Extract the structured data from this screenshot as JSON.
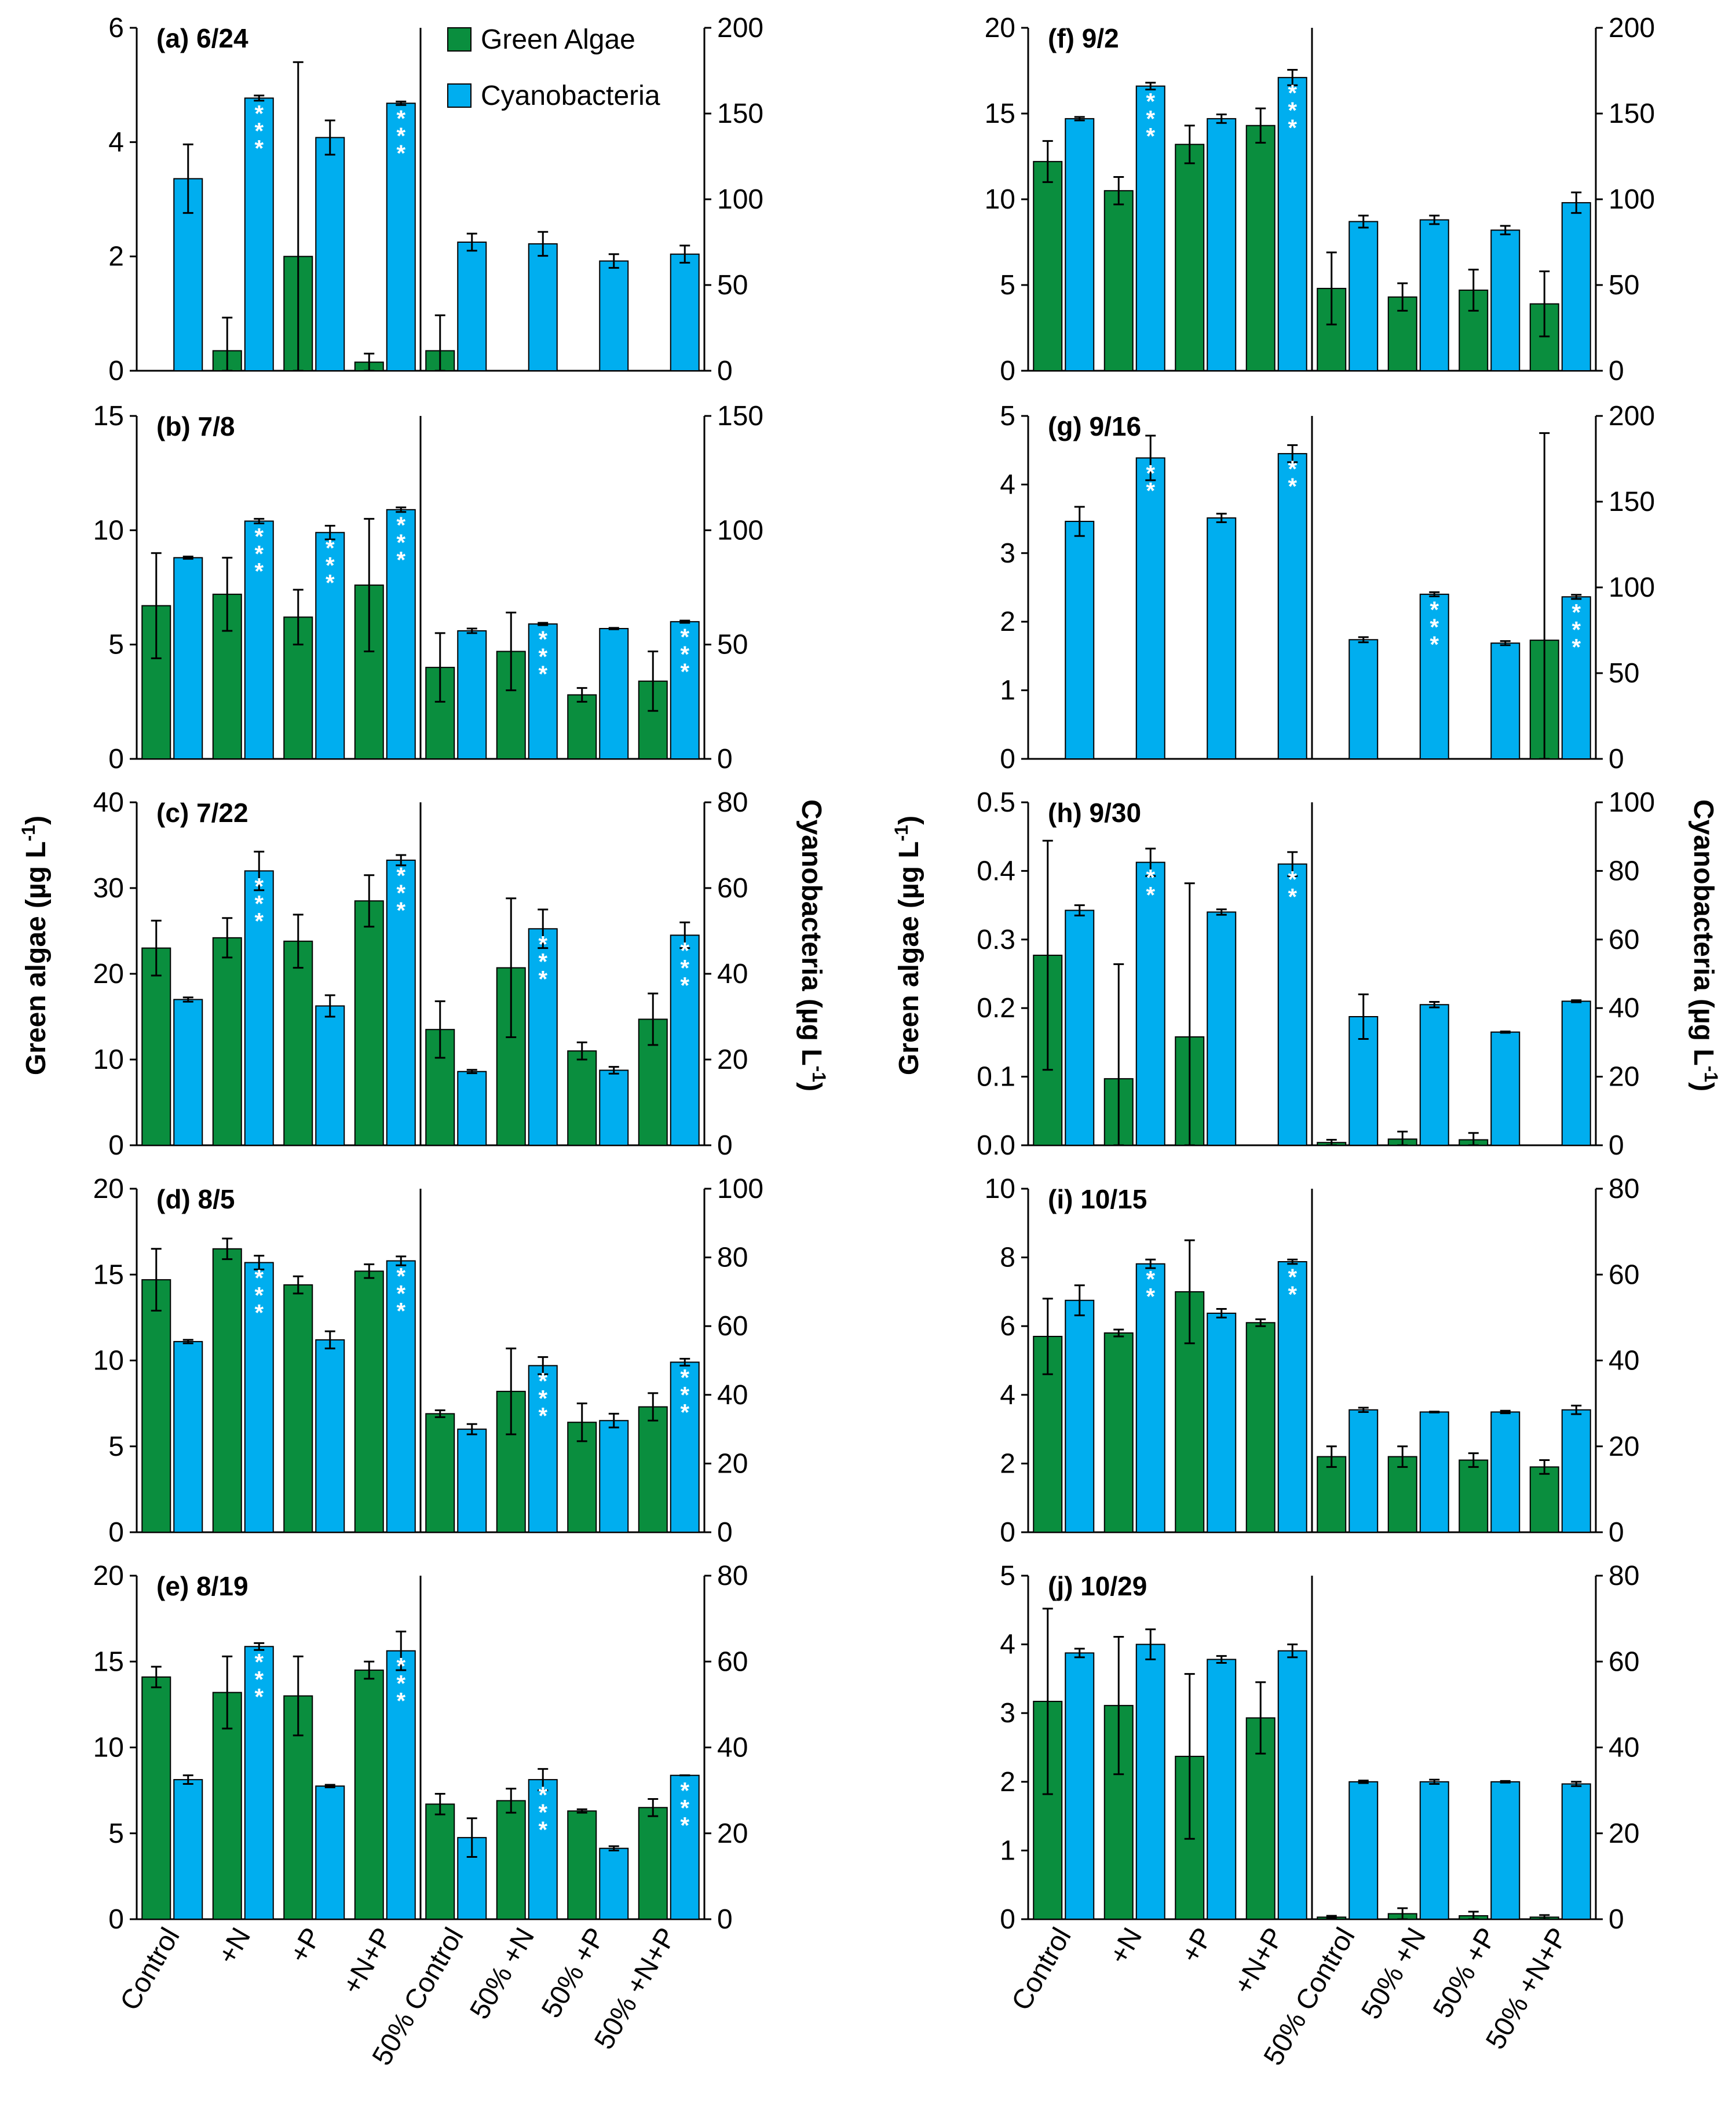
{
  "colors": {
    "green": "#0A8E3E",
    "cyan": "#00AEEF",
    "axis": "#000000"
  },
  "legend": [
    {
      "label": "Green Algae",
      "color": "#0A8E3E"
    },
    {
      "label": "Cyanobacteria",
      "color": "#00AEEF"
    }
  ],
  "axis_titles": {
    "left_y": "Green algae (µg L",
    "right_y": "Cyanobacteria (µg L",
    "unit_sup": "-1",
    "close": ")"
  },
  "categories": [
    "Control",
    "+N",
    "+P",
    "+N+P",
    "50% Control",
    "50% +N",
    "50% +P",
    "50% +N+P"
  ],
  "chart_data": [
    {
      "type": "bar",
      "title": "(a) 6/24",
      "ylim": [
        0,
        6
      ],
      "yticks": [
        "0",
        "2",
        "4",
        "6"
      ],
      "y2lim": [
        0,
        200
      ],
      "y2ticks": [
        "0",
        "50",
        "100",
        "150",
        "200"
      ],
      "green": [
        0,
        0.35,
        2.0,
        0.15,
        0.35,
        0,
        0,
        0
      ],
      "green_err": [
        0,
        0.58,
        3.4,
        0.15,
        0.62,
        0,
        0,
        0
      ],
      "cyan": [
        112,
        159,
        136,
        156,
        75,
        74,
        64,
        68
      ],
      "cyan_err": [
        20,
        1.5,
        10,
        1,
        5,
        7,
        4,
        5
      ],
      "stars": [
        "",
        "***",
        "",
        "***",
        "",
        "",
        "",
        ""
      ]
    },
    {
      "type": "bar",
      "title": "(b) 7/8",
      "ylim": [
        0,
        15
      ],
      "yticks": [
        "0",
        "5",
        "10",
        "15"
      ],
      "y2lim": [
        0,
        150
      ],
      "y2ticks": [
        "0",
        "50",
        "100",
        "150"
      ],
      "green": [
        6.7,
        7.2,
        6.2,
        7.6,
        4.0,
        4.7,
        2.8,
        3.4
      ],
      "green_err": [
        2.3,
        1.6,
        1.2,
        2.9,
        1.5,
        1.7,
        0.3,
        1.3
      ],
      "cyan": [
        88,
        104,
        99,
        109,
        56,
        59,
        57,
        60
      ],
      "cyan_err": [
        0.5,
        1,
        3,
        1,
        1,
        0.5,
        0.3,
        0.5
      ],
      "stars": [
        "",
        "***",
        "***",
        "***",
        "",
        "***",
        "",
        "***"
      ]
    },
    {
      "type": "bar",
      "title": "(c) 7/22",
      "ylim": [
        0,
        40
      ],
      "yticks": [
        "0",
        "10",
        "20",
        "30",
        "40"
      ],
      "y2lim": [
        0,
        80
      ],
      "y2ticks": [
        "0",
        "20",
        "40",
        "60",
        "80"
      ],
      "green": [
        23.0,
        24.2,
        23.8,
        28.5,
        13.5,
        20.7,
        11.0,
        14.7
      ],
      "green_err": [
        3.2,
        2.3,
        3.1,
        3.0,
        3.3,
        8.1,
        1.0,
        3.0
      ],
      "cyan": [
        34,
        64,
        32.5,
        66.5,
        17.2,
        50.5,
        17.5,
        49
      ],
      "cyan_err": [
        0.5,
        4.5,
        2.5,
        1.2,
        0.4,
        4.5,
        0.8,
        3
      ],
      "stars": [
        "",
        "***",
        "",
        "***",
        "",
        "***",
        "",
        "***"
      ]
    },
    {
      "type": "bar",
      "title": "(d) 8/5",
      "ylim": [
        0,
        20
      ],
      "yticks": [
        "0",
        "5",
        "10",
        "15",
        "20"
      ],
      "y2lim": [
        0,
        100
      ],
      "y2ticks": [
        "0",
        "20",
        "40",
        "60",
        "80",
        "100"
      ],
      "green": [
        14.7,
        16.5,
        14.4,
        15.2,
        6.9,
        8.2,
        6.4,
        7.3
      ],
      "green_err": [
        1.8,
        0.6,
        0.5,
        0.4,
        0.2,
        2.5,
        1.1,
        0.8
      ],
      "cyan": [
        55.5,
        78.5,
        56,
        79,
        30,
        48.5,
        32.5,
        49.5
      ],
      "cyan_err": [
        0.5,
        2,
        2.5,
        1.3,
        1.5,
        2.5,
        2,
        1
      ],
      "stars": [
        "",
        "***",
        "",
        "***",
        "",
        "***",
        "",
        "***"
      ]
    },
    {
      "type": "bar",
      "title": "(e) 8/19",
      "ylim": [
        0,
        20
      ],
      "yticks": [
        "0",
        "5",
        "10",
        "15",
        "20"
      ],
      "y2lim": [
        0,
        80
      ],
      "y2ticks": [
        "0",
        "20",
        "40",
        "60",
        "80"
      ],
      "green": [
        14.1,
        13.2,
        13.0,
        14.5,
        6.7,
        6.9,
        6.3,
        6.5
      ],
      "green_err": [
        0.6,
        2.1,
        2.3,
        0.5,
        0.6,
        0.7,
        0.1,
        0.5
      ],
      "cyan": [
        32.5,
        63.5,
        31,
        62.5,
        19,
        32.5,
        16.5,
        33.5
      ],
      "cyan_err": [
        1,
        0.8,
        0.3,
        4.5,
        4.5,
        2.5,
        0.5,
        0
      ],
      "stars": [
        "",
        "***",
        "",
        "***",
        "",
        "***",
        "",
        "***"
      ]
    },
    {
      "type": "bar",
      "title": "(f) 9/2",
      "ylim": [
        0,
        20
      ],
      "yticks": [
        "0",
        "5",
        "10",
        "15",
        "20"
      ],
      "y2lim": [
        0,
        200
      ],
      "y2ticks": [
        "0",
        "50",
        "100",
        "150",
        "200"
      ],
      "green": [
        12.2,
        10.5,
        13.2,
        14.3,
        4.8,
        4.3,
        4.7,
        3.9
      ],
      "green_err": [
        1.2,
        0.8,
        1.1,
        1.0,
        2.1,
        0.8,
        1.2,
        1.9
      ],
      "cyan": [
        147,
        166,
        147,
        171,
        87,
        88,
        82,
        98
      ],
      "cyan_err": [
        1,
        2,
        2.5,
        4.5,
        3.5,
        2.5,
        2.5,
        6
      ],
      "stars": [
        "",
        "***",
        "",
        "***",
        "",
        "",
        "",
        ""
      ]
    },
    {
      "type": "bar",
      "title": "(g) 9/16",
      "ylim": [
        0,
        5
      ],
      "yticks": [
        "0",
        "1",
        "2",
        "3",
        "4",
        "5"
      ],
      "y2lim": [
        0,
        200
      ],
      "y2ticks": [
        "0",
        "50",
        "100",
        "150",
        "200"
      ],
      "green": [
        0,
        0,
        0,
        0,
        0,
        0,
        0,
        1.73
      ],
      "green_err": [
        0,
        0,
        0,
        0,
        0,
        0,
        0,
        3.02
      ],
      "cyan": [
        138.5,
        175.5,
        140.5,
        178,
        69.5,
        96,
        67.5,
        94.5
      ],
      "cyan_err": [
        8.5,
        13,
        2.5,
        5,
        1.5,
        1.2,
        1.2,
        1.2
      ],
      "stars": [
        "",
        "**",
        "",
        "**",
        "",
        "***",
        "",
        "***"
      ]
    },
    {
      "type": "bar",
      "title": "(h) 9/30",
      "ylim": [
        0,
        0.5
      ],
      "yticks": [
        "0.0",
        "0.1",
        "0.2",
        "0.3",
        "0.4",
        "0.5"
      ],
      "y2lim": [
        0,
        100
      ],
      "y2ticks": [
        "0",
        "20",
        "40",
        "60",
        "80",
        "100"
      ],
      "green": [
        0.277,
        0.097,
        0.158,
        0,
        0.004,
        0.009,
        0.008,
        0
      ],
      "green_err": [
        0.167,
        0.167,
        0.224,
        0,
        0.004,
        0.011,
        0.01,
        0
      ],
      "cyan": [
        68.5,
        82.5,
        68,
        82,
        37.5,
        41,
        33,
        42
      ],
      "cyan_err": [
        1.5,
        4,
        0.8,
        3.5,
        6.5,
        0.8,
        0.2,
        0.3
      ],
      "stars": [
        "",
        "**",
        "",
        "**",
        "",
        "",
        "",
        ""
      ]
    },
    {
      "type": "bar",
      "title": "(i) 10/15",
      "ylim": [
        0,
        10
      ],
      "yticks": [
        "0",
        "2",
        "4",
        "6",
        "8",
        "10"
      ],
      "y2lim": [
        0,
        80
      ],
      "y2ticks": [
        "0",
        "20",
        "40",
        "60",
        "80"
      ],
      "green": [
        5.7,
        5.8,
        7.0,
        6.1,
        2.2,
        2.2,
        2.1,
        1.9
      ],
      "green_err": [
        1.1,
        0.1,
        1.5,
        0.1,
        0.3,
        0.3,
        0.2,
        0.2
      ],
      "cyan": [
        54,
        62.5,
        51,
        63,
        28.5,
        28,
        28,
        28.5
      ],
      "cyan_err": [
        3.5,
        1,
        1,
        0.5,
        0.5,
        0.1,
        0.3,
        1
      ],
      "stars": [
        "",
        "**",
        "",
        "**",
        "",
        "",
        "",
        ""
      ]
    },
    {
      "type": "bar",
      "title": "(j) 10/29",
      "ylim": [
        0,
        5
      ],
      "yticks": [
        "0",
        "1",
        "2",
        "3",
        "4",
        "5"
      ],
      "y2lim": [
        0,
        80
      ],
      "y2ticks": [
        "0",
        "20",
        "40",
        "60",
        "80"
      ],
      "green": [
        3.17,
        3.11,
        2.37,
        2.93,
        0.03,
        0.08,
        0.05,
        0.03
      ],
      "green_err": [
        1.35,
        1.0,
        1.2,
        0.52,
        0.02,
        0.08,
        0.06,
        0.03
      ],
      "cyan": [
        62,
        64,
        60.5,
        62.5,
        32,
        32,
        32,
        31.5
      ],
      "cyan_err": [
        1,
        3.5,
        0.8,
        1.5,
        0.3,
        0.5,
        0.2,
        0.5
      ],
      "stars": [
        "",
        "",
        "",
        "",
        "",
        "",
        "",
        ""
      ]
    }
  ]
}
